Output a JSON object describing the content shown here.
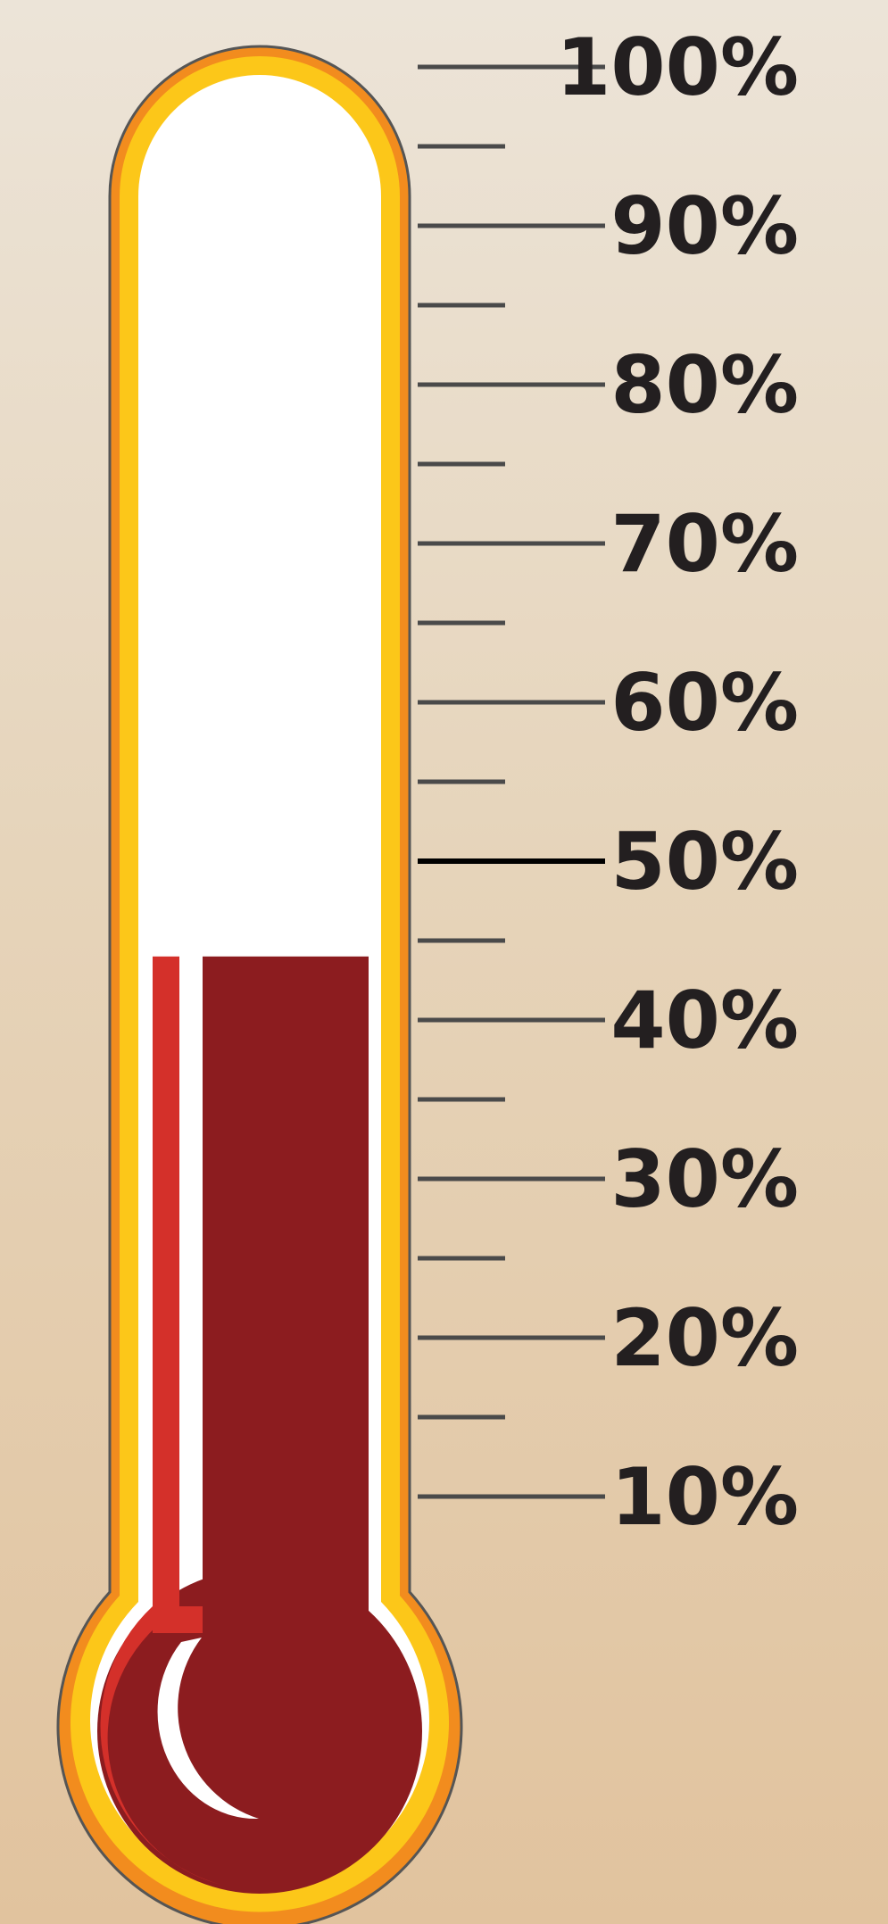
{
  "thermometer": {
    "fill_level_percent": 44,
    "scale": {
      "major_labels": [
        "100%",
        "90%",
        "80%",
        "70%",
        "60%",
        "50%",
        "40%",
        "30%",
        "20%",
        "10%"
      ],
      "highlighted_label": "50%"
    },
    "colors": {
      "background_top": "#ece4d8",
      "background_bottom": "#e1c39e",
      "outer_rim": "#f28c1e",
      "yellow_band": "#fcc719",
      "tube_interior": "#ffffff",
      "liquid_dark": "#8c1c1f",
      "liquid_highlight": "#d4302a",
      "tick_color": "#4a4a4a",
      "highlight_tick_color": "#000000",
      "label_color": "#231f20"
    }
  }
}
